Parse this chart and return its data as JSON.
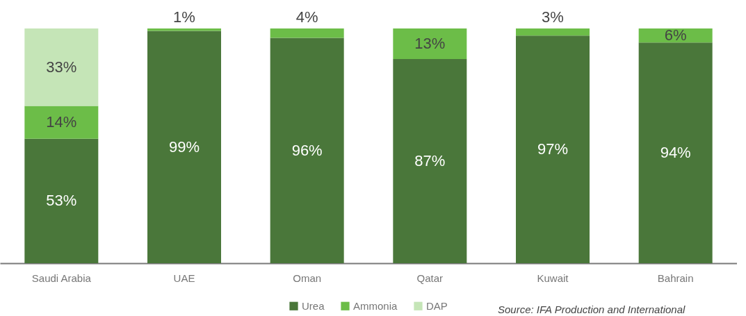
{
  "chart_data": {
    "type": "bar",
    "stacked": true,
    "categories": [
      "Saudi Arabia",
      "UAE",
      "Oman",
      "Qatar",
      "Kuwait",
      "Bahrain"
    ],
    "series": [
      {
        "name": "Urea",
        "color": "#4a773a",
        "values": [
          53,
          99,
          96,
          87,
          97,
          94
        ],
        "value_labels": [
          "53%",
          "99%",
          "96%",
          "87%",
          "97%",
          "94%"
        ]
      },
      {
        "name": "Ammonia",
        "color": "#6cbd48",
        "values": [
          14,
          1,
          4,
          13,
          3,
          6
        ],
        "value_labels": [
          "14%",
          "1%",
          "4%",
          "13%",
          "3%",
          "6%"
        ]
      },
      {
        "name": "DAP",
        "color": "#c5e5b7",
        "values": [
          33,
          null,
          null,
          null,
          null,
          null
        ],
        "value_labels": [
          "33%",
          null,
          null,
          null,
          null,
          null
        ]
      }
    ],
    "legend": "bottom",
    "tick_labels": "x",
    "grid": false,
    "annotations": [
      "Source: IFA Production and International"
    ]
  }
}
